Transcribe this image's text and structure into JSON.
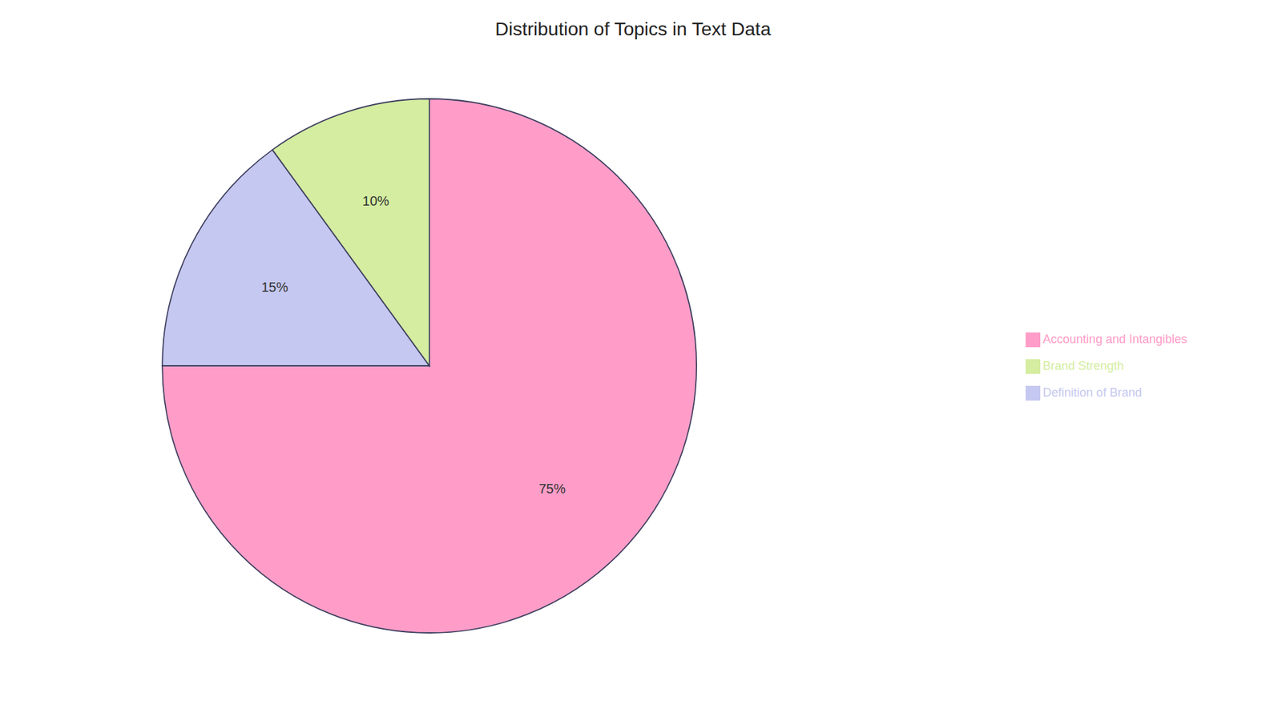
{
  "chart_data": {
    "type": "pie",
    "title": "Distribution of Topics in Text Data",
    "categories": [
      "Accounting and Intangibles",
      "Definition of Brand",
      "Brand Strength"
    ],
    "values": [
      75,
      15,
      10
    ],
    "value_labels": [
      "75%",
      "15%",
      "10%"
    ],
    "colors": [
      "#FF9DC8",
      "#C5C8F0",
      "#D4EDA0"
    ],
    "data_labels": true,
    "legend": "right"
  }
}
